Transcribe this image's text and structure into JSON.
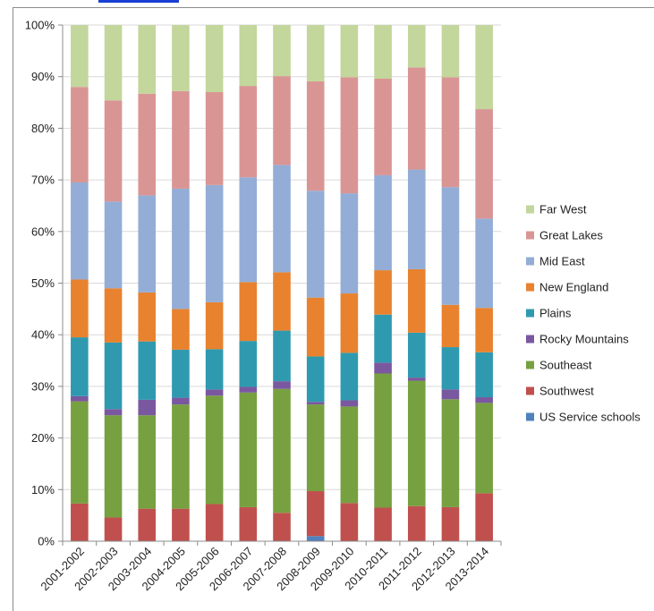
{
  "chart_data": {
    "type": "bar",
    "stacked": true,
    "normalized": true,
    "categories": [
      "2001-2002",
      "2002-2003",
      "2003-2004",
      "2004-2005",
      "2005-2006",
      "2006-2007",
      "2007-2008",
      "2008-2009",
      "2009-2010",
      "2010-2011",
      "2011-2012",
      "2012-2013",
      "2013-2014"
    ],
    "series": [
      {
        "name": "US Service schools",
        "color": "#4f81bd",
        "values": [
          0,
          0,
          0,
          0,
          0,
          0,
          0,
          1,
          0,
          0,
          0,
          0,
          0
        ]
      },
      {
        "name": "Southwest",
        "color": "#c0504d",
        "values": [
          7.3,
          4.6,
          6.3,
          6.3,
          7.2,
          6.6,
          5.5,
          8.7,
          7.4,
          6.5,
          6.8,
          6.6,
          9.3
        ]
      },
      {
        "name": "Southeast",
        "color": "#77a040",
        "values": [
          19.8,
          19.8,
          18.1,
          20.2,
          21,
          22.2,
          24,
          16.8,
          18.7,
          26,
          24.3,
          20.9,
          17.5
        ]
      },
      {
        "name": "Rocky Mountains",
        "color": "#7a58a0",
        "values": [
          1,
          1.2,
          3,
          1.3,
          1.2,
          1.1,
          1.5,
          0.5,
          1.2,
          2.1,
          0.6,
          1.9,
          1.1
        ]
      },
      {
        "name": "Plains",
        "color": "#2f9aaf",
        "values": [
          11.4,
          12.9,
          11.3,
          9.3,
          7.8,
          8.9,
          9.8,
          8.8,
          9.2,
          9.3,
          8.7,
          8.2,
          8.7
        ]
      },
      {
        "name": "New England",
        "color": "#e8822f",
        "values": [
          11.2,
          10.5,
          9.5,
          7.9,
          9.1,
          11.4,
          11.3,
          11.4,
          11.5,
          8.6,
          12.3,
          8.2,
          8.6
        ]
      },
      {
        "name": "Mid East",
        "color": "#93add6",
        "values": [
          18.8,
          16.8,
          18.8,
          23.3,
          22.7,
          20.3,
          20.8,
          20.7,
          19.4,
          18.4,
          19.3,
          22.8,
          17.3
        ]
      },
      {
        "name": "Great Lakes",
        "color": "#d99594",
        "values": [
          18.5,
          19.6,
          19.7,
          18.9,
          18,
          17.7,
          17.2,
          21.2,
          22.5,
          18.7,
          19.8,
          21.3,
          21.2
        ]
      },
      {
        "name": "Far West",
        "color": "#c3d69b",
        "values": [
          12,
          14.6,
          13.3,
          12.8,
          13,
          11.8,
          9.9,
          10.9,
          10.1,
          10.4,
          8.2,
          10.1,
          16.3
        ]
      }
    ],
    "y_ticks": [
      "0%",
      "10%",
      "20%",
      "30%",
      "40%",
      "50%",
      "60%",
      "70%",
      "80%",
      "90%",
      "100%"
    ],
    "ylim": [
      0,
      100
    ],
    "legend": {
      "placement": "right",
      "order": [
        "Far West",
        "Great Lakes",
        "Mid East",
        "New England",
        "Plains",
        "Rocky Mountains",
        "Southeast",
        "Southwest",
        "US Service schools"
      ]
    }
  }
}
